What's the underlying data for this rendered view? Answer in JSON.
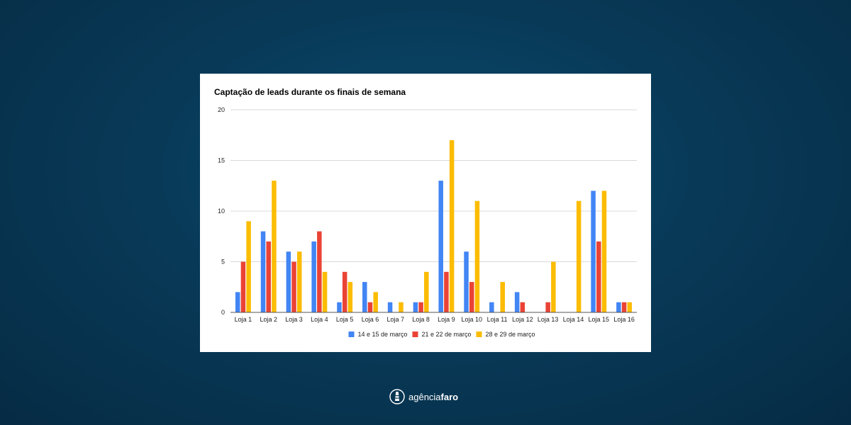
{
  "colors": {
    "series1": "#4285F4",
    "series2": "#EA4335",
    "series3": "#FBBC04"
  },
  "brand": {
    "part1": "agência",
    "part2": "faro",
    "icon": "lighthouse-icon"
  },
  "chart_data": {
    "type": "bar",
    "title": "Captação de leads durante os finais de semana",
    "xlabel": "",
    "ylabel": "",
    "ylim": [
      0,
      20
    ],
    "yticks": [
      "0",
      "5",
      "10",
      "15",
      "20"
    ],
    "grid": true,
    "legend_position": "bottom",
    "categories": [
      "Loja 1",
      "Loja 2",
      "Loja 3",
      "Loja 4",
      "Loja 5",
      "Loja 6",
      "Loja 7",
      "Loja 8",
      "Loja 9",
      "Loja 10",
      "Loja 11",
      "Loja 12",
      "Loja 13",
      "Loja 14",
      "Loja 15",
      "Loja 16"
    ],
    "series": [
      {
        "name": "14 e 15 de março",
        "values": [
          2,
          8,
          6,
          7,
          1,
          3,
          1,
          1,
          13,
          6,
          1,
          2,
          0,
          0,
          12,
          1
        ]
      },
      {
        "name": "21 e 22 de março",
        "values": [
          5,
          7,
          5,
          8,
          4,
          1,
          0,
          1,
          4,
          3,
          0,
          1,
          1,
          0,
          7,
          1
        ]
      },
      {
        "name": "28 e 29 de março",
        "values": [
          9,
          13,
          6,
          4,
          3,
          2,
          1,
          4,
          17,
          11,
          3,
          0,
          5,
          11,
          12,
          1
        ]
      }
    ]
  }
}
